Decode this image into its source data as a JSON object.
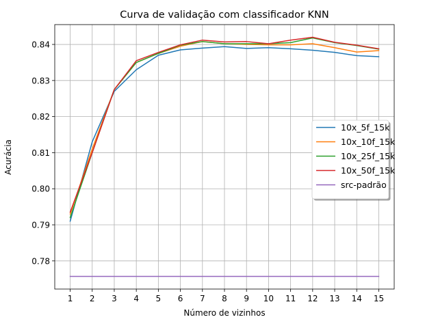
{
  "chart_data": {
    "type": "line",
    "title": "Curva de validação com classificador KNN",
    "xlabel": "Número de vizinhos",
    "ylabel": "Acurácia",
    "x": [
      1,
      2,
      3,
      4,
      5,
      6,
      7,
      8,
      9,
      10,
      11,
      12,
      13,
      14,
      15
    ],
    "xlim": [
      0.3,
      15.7
    ],
    "ylim": [
      0.7722,
      0.8455
    ],
    "yticks": [
      0.78,
      0.79,
      0.8,
      0.81,
      0.82,
      0.83,
      0.84
    ],
    "ytick_labels": [
      "0.78",
      "0.79",
      "0.80",
      "0.81",
      "0.82",
      "0.83",
      "0.84"
    ],
    "grid": true,
    "legend_position": "center-right",
    "series": [
      {
        "name": "10x_5f_15k",
        "color": "#1f77b4",
        "values": [
          0.791,
          0.813,
          0.827,
          0.833,
          0.837,
          0.8385,
          0.839,
          0.8394,
          0.8389,
          0.8391,
          0.8388,
          0.8384,
          0.8378,
          0.8369,
          0.8366
        ]
      },
      {
        "name": "10x_10f_15k",
        "color": "#ff7f0e",
        "values": [
          0.793,
          0.811,
          0.8275,
          0.835,
          0.8375,
          0.8395,
          0.8408,
          0.8402,
          0.84,
          0.8399,
          0.8399,
          0.8402,
          0.8391,
          0.8379,
          0.8383
        ]
      },
      {
        "name": "10x_25f_15k",
        "color": "#2ca02c",
        "values": [
          0.792,
          0.81,
          0.8275,
          0.835,
          0.8375,
          0.8398,
          0.8408,
          0.8402,
          0.8402,
          0.8402,
          0.8405,
          0.8418,
          0.8405,
          0.8397,
          0.8387
        ]
      },
      {
        "name": "10x_50f_15k",
        "color": "#d62728",
        "values": [
          0.7935,
          0.81,
          0.8275,
          0.8355,
          0.8378,
          0.8399,
          0.8412,
          0.8407,
          0.8408,
          0.8402,
          0.8412,
          0.842,
          0.8406,
          0.8398,
          0.8388
        ]
      },
      {
        "name": "src-padrão",
        "color": "#9467bd",
        "values": [
          0.7757,
          0.7757,
          0.7757,
          0.7757,
          0.7757,
          0.7757,
          0.7757,
          0.7757,
          0.7757,
          0.7757,
          0.7757,
          0.7757,
          0.7757,
          0.7757,
          0.7757
        ]
      }
    ]
  }
}
